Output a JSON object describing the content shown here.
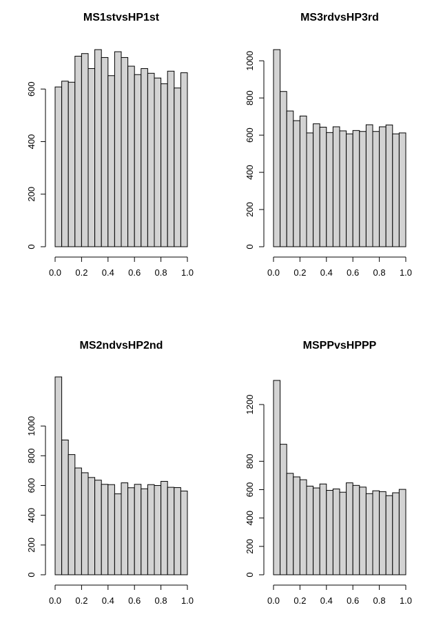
{
  "bar_fill": "#d3d3d3",
  "chart_data": [
    {
      "type": "bar",
      "title": "MS1stvsHP1st",
      "xlabel": "",
      "ylabel": "",
      "bin_edges": [
        0.0,
        0.05,
        0.1,
        0.15,
        0.2,
        0.25,
        0.3,
        0.35,
        0.4,
        0.45,
        0.5,
        0.55,
        0.6,
        0.65,
        0.7,
        0.75,
        0.8,
        0.85,
        0.9,
        0.95,
        1.0
      ],
      "values": [
        608,
        630,
        626,
        725,
        735,
        678,
        750,
        720,
        651,
        742,
        720,
        687,
        655,
        678,
        660,
        642,
        620,
        668,
        604,
        662
      ],
      "xlim": [
        0,
        1
      ],
      "ylim": [
        0,
        750
      ],
      "x_ticks": [
        "0.0",
        "0.2",
        "0.4",
        "0.6",
        "0.8",
        "1.0"
      ],
      "y_ticks": [
        "0",
        "200",
        "400",
        "600"
      ]
    },
    {
      "type": "bar",
      "title": "MS3rdvsHP3rd",
      "xlabel": "",
      "ylabel": "",
      "bin_edges": [
        0.0,
        0.05,
        0.1,
        0.15,
        0.2,
        0.25,
        0.3,
        0.35,
        0.4,
        0.45,
        0.5,
        0.55,
        0.6,
        0.65,
        0.7,
        0.75,
        0.8,
        0.85,
        0.9,
        0.95,
        1.0
      ],
      "values": [
        1060,
        835,
        730,
        678,
        703,
        612,
        661,
        643,
        614,
        645,
        623,
        607,
        625,
        620,
        656,
        620,
        645,
        655,
        607,
        612
      ],
      "xlim": [
        0,
        1
      ],
      "ylim": [
        0,
        1060
      ],
      "x_ticks": [
        "0.0",
        "0.2",
        "0.4",
        "0.6",
        "0.8",
        "1.0"
      ],
      "y_ticks": [
        "0",
        "200",
        "400",
        "600",
        "800",
        "1000"
      ]
    },
    {
      "type": "bar",
      "title": "MS2ndvsHP2nd",
      "xlabel": "",
      "ylabel": "",
      "bin_edges": [
        0.0,
        0.05,
        0.1,
        0.15,
        0.2,
        0.25,
        0.3,
        0.35,
        0.4,
        0.45,
        0.5,
        0.55,
        0.6,
        0.65,
        0.7,
        0.75,
        0.8,
        0.85,
        0.9,
        0.95,
        1.0
      ],
      "values": [
        1330,
        906,
        808,
        718,
        686,
        654,
        636,
        608,
        606,
        544,
        618,
        585,
        608,
        578,
        606,
        600,
        628,
        588,
        586,
        563
      ],
      "xlim": [
        0,
        1
      ],
      "ylim": [
        0,
        1200
      ],
      "x_ticks": [
        "0.0",
        "0.2",
        "0.4",
        "0.6",
        "0.8",
        "1.0"
      ],
      "y_ticks": [
        "0",
        "200",
        "400",
        "600",
        "800",
        "1000"
      ]
    },
    {
      "type": "bar",
      "title": "MSPPvsHPPP",
      "xlabel": "",
      "ylabel": "",
      "bin_edges": [
        0.0,
        0.05,
        0.1,
        0.15,
        0.2,
        0.25,
        0.3,
        0.35,
        0.4,
        0.45,
        0.5,
        0.55,
        0.6,
        0.65,
        0.7,
        0.75,
        0.8,
        0.85,
        0.9,
        0.95,
        1.0
      ],
      "values": [
        1370,
        920,
        715,
        690,
        670,
        625,
        612,
        640,
        595,
        605,
        582,
        648,
        630,
        618,
        572,
        592,
        586,
        558,
        578,
        602
      ],
      "xlim": [
        0,
        1
      ],
      "ylim": [
        0,
        1200
      ],
      "x_ticks": [
        "0.0",
        "0.2",
        "0.4",
        "0.6",
        "0.8",
        "1.0"
      ],
      "y_ticks": [
        "0",
        "200",
        "400",
        "600",
        "800",
        "1200"
      ]
    }
  ]
}
